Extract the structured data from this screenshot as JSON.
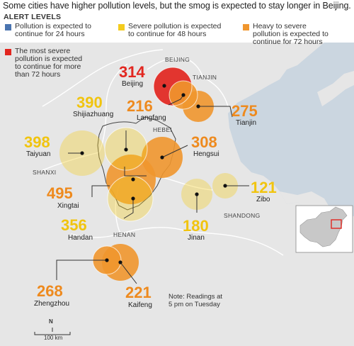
{
  "headline": "Some cities have higher pollution levels, but the smog is expected to stay longer in Beijing.",
  "legend": {
    "title": "ALERT LEVELS",
    "items": [
      {
        "color": "#4a74b0",
        "lines": [
          "Pollution is expected to",
          "continue for 24 hours"
        ]
      },
      {
        "color": "#f4cc1e",
        "lines": [
          "Severe pollution is expected",
          "to continue for 48 hours"
        ]
      },
      {
        "color": "#f0962e",
        "lines": [
          "Heavy to severe",
          "pollution is expected to",
          "continue for 72 hours"
        ]
      },
      {
        "color": "#e2261f",
        "lines": [
          "The most severe",
          "pollution is expected",
          "to continue for more",
          "than 72 hours"
        ]
      }
    ]
  },
  "regions": {
    "beijing": "BEIJING",
    "tianjin": "TIANJIN",
    "hebei": "HEBEI",
    "shanxi": "SHANXI",
    "shandong": "SHANDONG",
    "henan": "HENAN"
  },
  "cities": [
    {
      "name": "Beijing",
      "value": "314",
      "level": "red"
    },
    {
      "name": "Langfang",
      "value": "216",
      "level": "orange"
    },
    {
      "name": "Tianjin",
      "value": "275",
      "level": "orange"
    },
    {
      "name": "Shijiazhuang",
      "value": "390",
      "level": "yellow"
    },
    {
      "name": "Taiyuan",
      "value": "398",
      "level": "yellow"
    },
    {
      "name": "Hengsui",
      "value": "308",
      "level": "orange"
    },
    {
      "name": "Xingtai",
      "value": "495",
      "level": "orange"
    },
    {
      "name": "Handan",
      "value": "356",
      "level": "yellow"
    },
    {
      "name": "Jinan",
      "value": "180",
      "level": "yellow"
    },
    {
      "name": "Zibo",
      "value": "121",
      "level": "yellow"
    },
    {
      "name": "Zhengzhou",
      "value": "268",
      "level": "orange"
    },
    {
      "name": "Kaifeng",
      "value": "221",
      "level": "orange"
    }
  ],
  "note": [
    "Note: Readings at",
    "5 pm on Tuesday"
  ],
  "scale": {
    "north": "N",
    "label": "100 km"
  },
  "colors": {
    "land": "#e6e6e6",
    "sea": "#cbd6e0",
    "border": "#ffffff",
    "red": "#e2261f",
    "orange": "#f0962e",
    "yellow": "#f4cc1e",
    "text_red": "#e2261f",
    "text_orange": "#ee8a1e",
    "text_yellow": "#f1c40f"
  }
}
